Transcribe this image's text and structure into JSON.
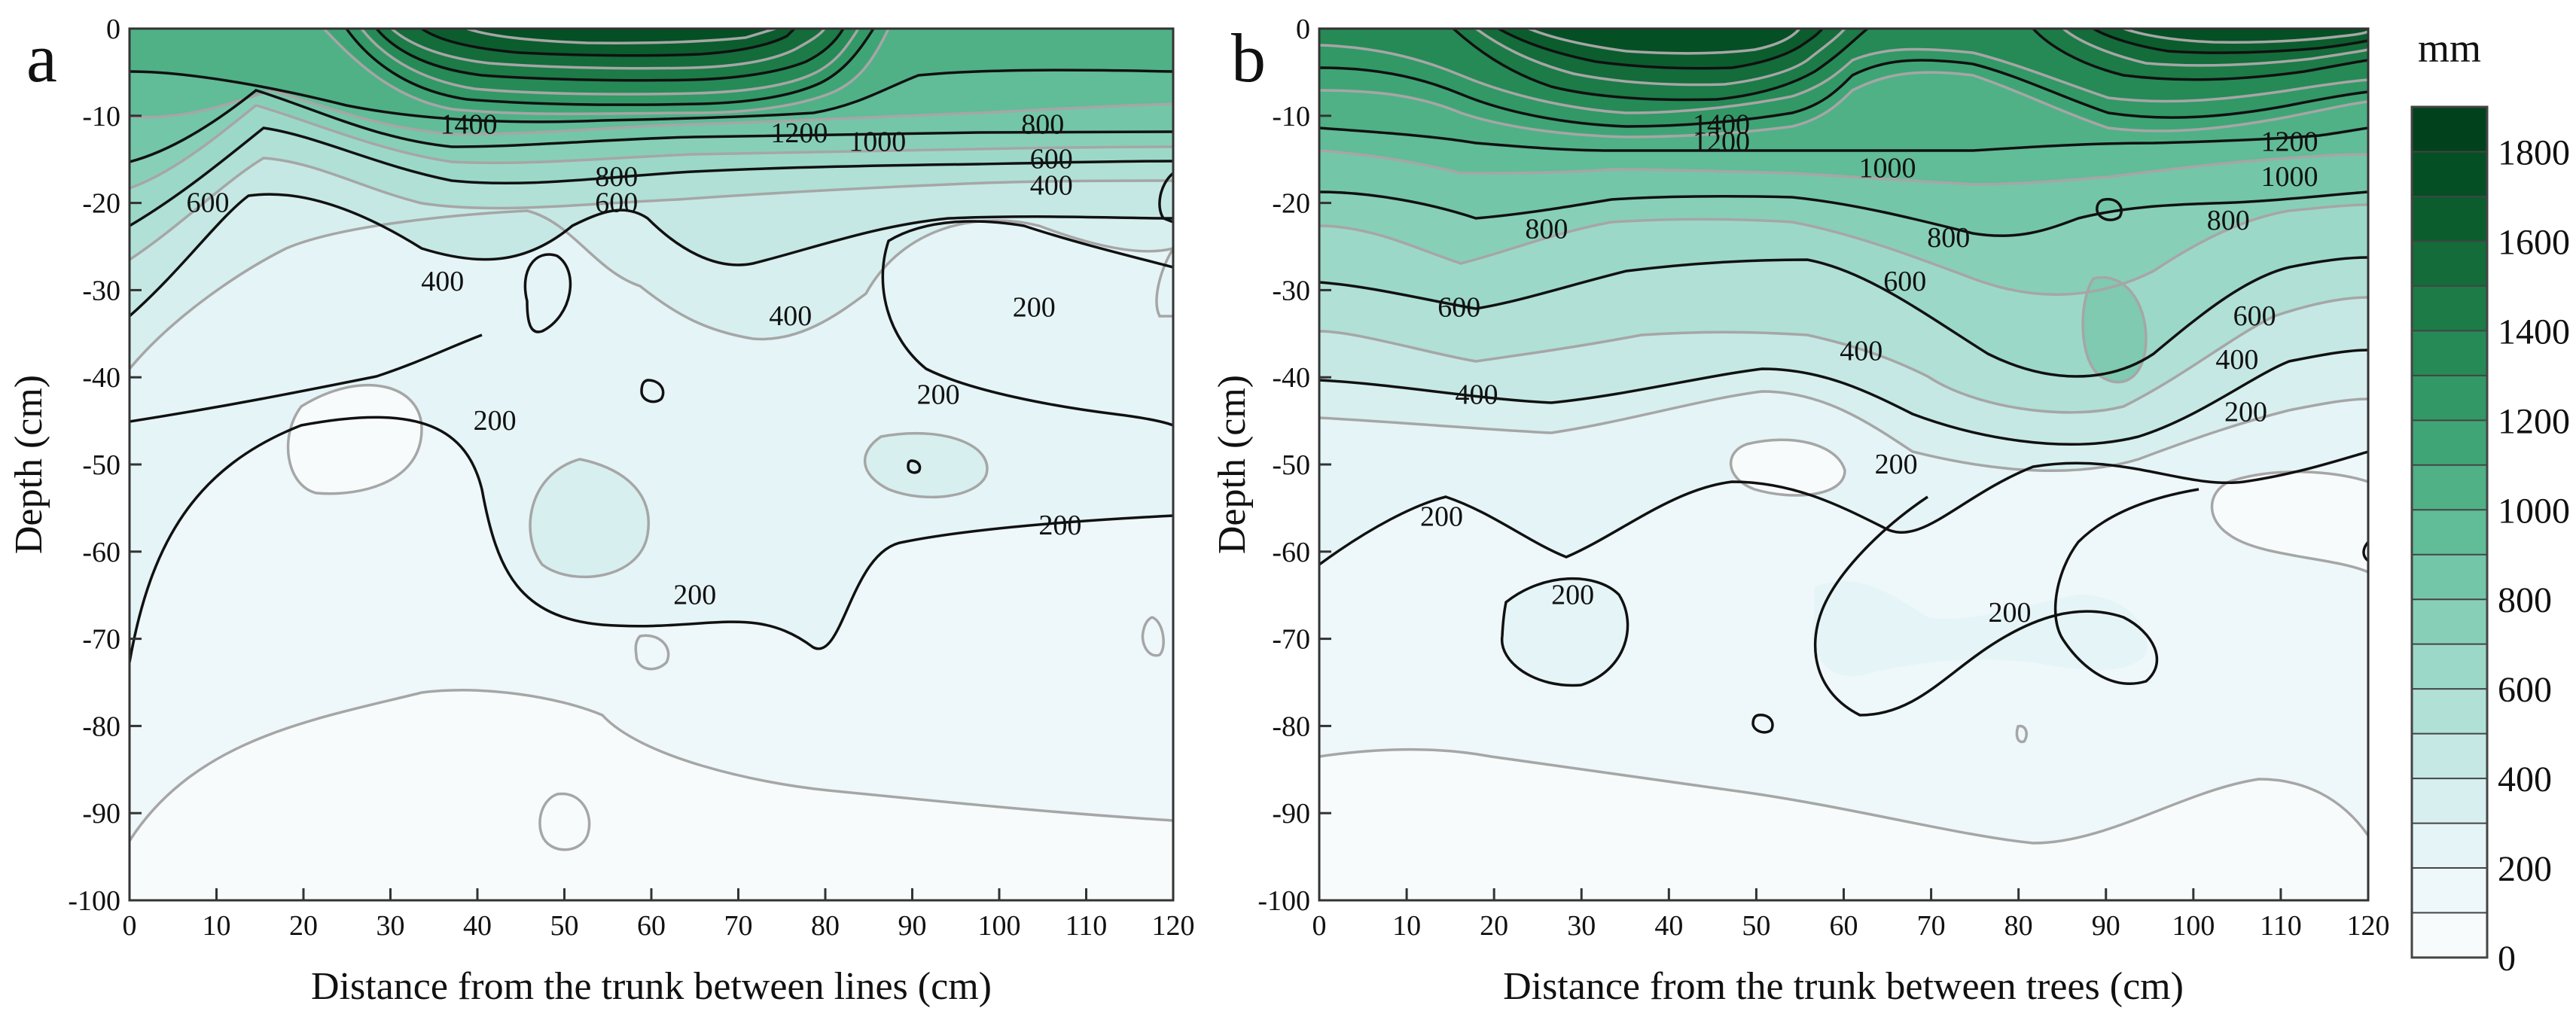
{
  "chart_data": [
    {
      "panel": "a",
      "type": "contour",
      "xlabel": "Distance from the trunk between lines (cm)",
      "ylabel": "Depth (cm)",
      "xlim": [
        0,
        120
      ],
      "ylim": [
        -100,
        0
      ],
      "xticks": [
        0,
        10,
        20,
        30,
        40,
        50,
        60,
        70,
        80,
        90,
        100,
        110,
        120
      ],
      "yticks": [
        0,
        -10,
        -20,
        -30,
        -40,
        -50,
        -60,
        -70,
        -80,
        -90,
        -100
      ],
      "contour_levels": [
        100,
        200,
        300,
        400,
        500,
        600,
        700,
        800,
        900,
        1000,
        1100,
        1200,
        1300,
        1400,
        1500,
        1600,
        1700,
        1800
      ],
      "labeled_contours": [
        {
          "value": 1400,
          "x": 39,
          "y": -11
        },
        {
          "value": 1200,
          "x": 77,
          "y": -12
        },
        {
          "value": 1000,
          "x": 86,
          "y": -13
        },
        {
          "value": 800,
          "x": 105,
          "y": -11
        },
        {
          "value": 600,
          "x": 106,
          "y": -15
        },
        {
          "value": 400,
          "x": 106,
          "y": -18
        },
        {
          "value": 800,
          "x": 56,
          "y": -17
        },
        {
          "value": 600,
          "x": 56,
          "y": -20
        },
        {
          "value": 600,
          "x": 9,
          "y": -20
        },
        {
          "value": 400,
          "x": 36,
          "y": -29
        },
        {
          "value": 400,
          "x": 76,
          "y": -33
        },
        {
          "value": 200,
          "x": 104,
          "y": -32
        },
        {
          "value": 200,
          "x": 93,
          "y": -42
        },
        {
          "value": 200,
          "x": 42,
          "y": -45
        },
        {
          "value": 200,
          "x": 107,
          "y": -57
        },
        {
          "value": 200,
          "x": 65,
          "y": -65
        }
      ]
    },
    {
      "panel": "b",
      "type": "contour",
      "xlabel": "Distance from the trunk between trees (cm)",
      "ylabel": "Depth (cm)",
      "xlim": [
        0,
        120
      ],
      "ylim": [
        -100,
        0
      ],
      "xticks": [
        0,
        10,
        20,
        30,
        40,
        50,
        60,
        70,
        80,
        90,
        100,
        110,
        120
      ],
      "yticks": [
        0,
        -10,
        -20,
        -30,
        -40,
        -50,
        -60,
        -70,
        -80,
        -90,
        -100
      ],
      "contour_levels": [
        100,
        200,
        300,
        400,
        500,
        600,
        700,
        800,
        900,
        1000,
        1100,
        1200,
        1300,
        1400,
        1500,
        1600,
        1700,
        1800
      ],
      "labeled_contours": [
        {
          "value": 1400,
          "x": 46,
          "y": -11
        },
        {
          "value": 1200,
          "x": 46,
          "y": -13
        },
        {
          "value": 1000,
          "x": 65,
          "y": -16
        },
        {
          "value": 800,
          "x": 26,
          "y": -23
        },
        {
          "value": 600,
          "x": 16,
          "y": -32
        },
        {
          "value": 400,
          "x": 18,
          "y": -42
        },
        {
          "value": 200,
          "x": 14,
          "y": -56
        },
        {
          "value": 200,
          "x": 29,
          "y": -65
        },
        {
          "value": 800,
          "x": 72,
          "y": -24
        },
        {
          "value": 600,
          "x": 67,
          "y": -29
        },
        {
          "value": 400,
          "x": 62,
          "y": -37
        },
        {
          "value": 200,
          "x": 66,
          "y": -50
        },
        {
          "value": 200,
          "x": 79,
          "y": -67
        },
        {
          "value": 1200,
          "x": 111,
          "y": -13
        },
        {
          "value": 1000,
          "x": 111,
          "y": -17
        },
        {
          "value": 800,
          "x": 104,
          "y": -22
        },
        {
          "value": 600,
          "x": 107,
          "y": -33
        },
        {
          "value": 400,
          "x": 105,
          "y": -38
        },
        {
          "value": 200,
          "x": 106,
          "y": -44
        }
      ]
    }
  ],
  "colorbar": {
    "unit": "mm",
    "min": 0,
    "max": 1900,
    "step": 100,
    "tick_labels": [
      "0",
      "200",
      "400",
      "600",
      "800",
      "1000",
      "1200",
      "1400",
      "1600",
      "1800"
    ],
    "colors": [
      "#f7fbfc",
      "#eef7f9",
      "#e5f4f6",
      "#d7efef",
      "#c5e8e4",
      "#b0e0d6",
      "#9cd8c8",
      "#88cfb8",
      "#74c6a8",
      "#61bc98",
      "#50b187",
      "#40a576",
      "#329866",
      "#268a56",
      "#1c7b47",
      "#136c3a",
      "#0b5d2e",
      "#054f24",
      "#01421c"
    ]
  }
}
